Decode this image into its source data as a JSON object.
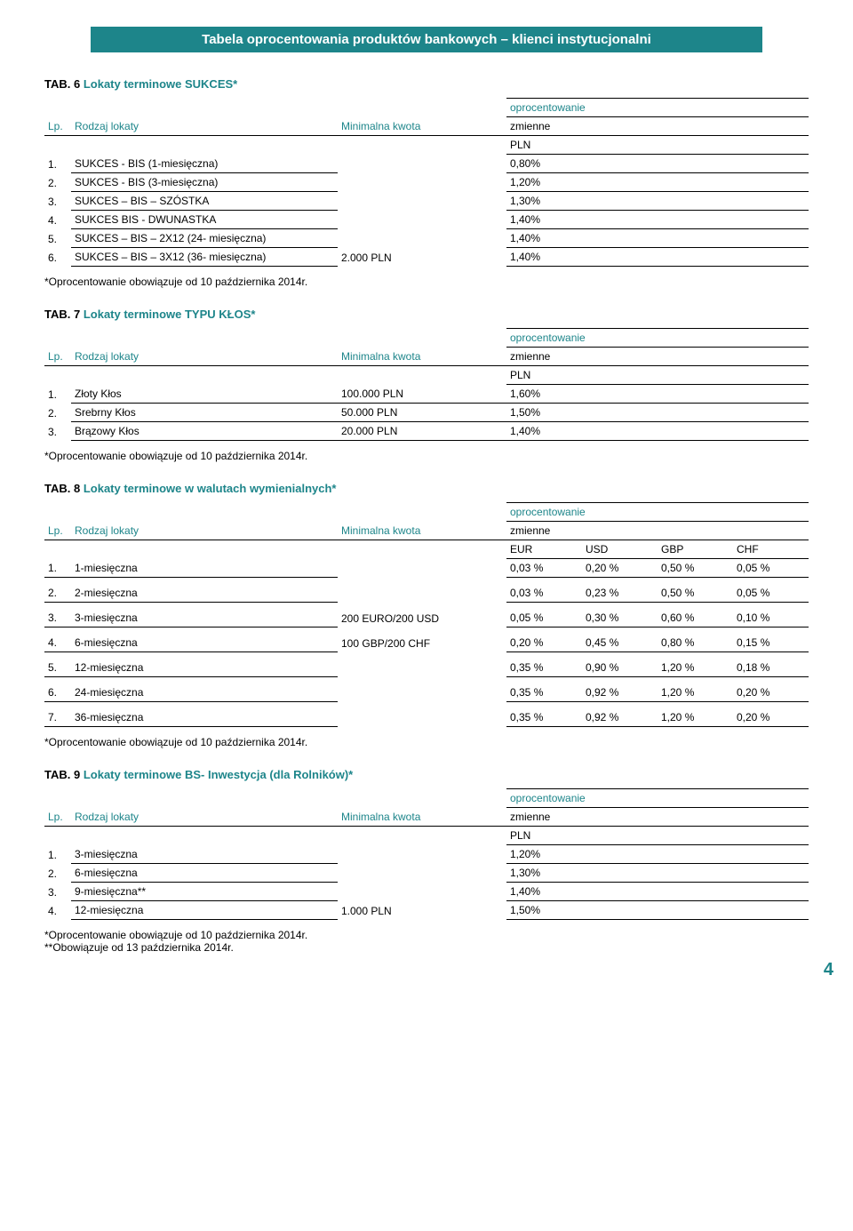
{
  "banner": "Tabela oprocentowania produktów bankowych – klienci instytucjonalni",
  "colors": {
    "brand": "#1d858a",
    "text": "#000000",
    "bg": "#ffffff"
  },
  "labels": {
    "lp": "Lp.",
    "rodzaj": "Rodzaj lokaty",
    "min_kwota": "Minimalna kwota",
    "oproc": "oprocentowanie",
    "zmienne": "zmienne",
    "pln": "PLN",
    "eur": "EUR",
    "usd": "USD",
    "gbp": "GBP",
    "chf": "CHF"
  },
  "note_main": "*Oprocentowanie obowiązuje od 10 października 2014r.",
  "note_extra": "**Obowiązuje od 13 października 2014r.",
  "tab6": {
    "prefix": "TAB. 6",
    "title": "Lokaty terminowe SUKCES*",
    "min": "2.000 PLN",
    "rows": [
      {
        "n": "1.",
        "name": "SUKCES - BIS (1-miesięczna)",
        "rate": "0,80%"
      },
      {
        "n": "2.",
        "name": "SUKCES - BIS (3-miesięczna)",
        "rate": "1,20%"
      },
      {
        "n": "3.",
        "name": "SUKCES – BIS – SZÓSTKA",
        "rate": "1,30%"
      },
      {
        "n": "4.",
        "name": "SUKCES BIS - DWUNASTKA",
        "rate": "1,40%"
      },
      {
        "n": "5.",
        "name": "SUKCES – BIS – 2X12 (24- miesięczna)",
        "rate": "1,40%"
      },
      {
        "n": "6.",
        "name": "SUKCES – BIS – 3X12 (36- miesięczna)",
        "rate": "1,40%"
      }
    ]
  },
  "tab7": {
    "prefix": "TAB. 7",
    "title": "Lokaty terminowe TYPU KŁOS*",
    "rows": [
      {
        "n": "1.",
        "name": "Złoty Kłos",
        "min": "100.000 PLN",
        "rate": "1,60%"
      },
      {
        "n": "2.",
        "name": "Srebrny Kłos",
        "min": "50.000 PLN",
        "rate": "1,50%"
      },
      {
        "n": "3.",
        "name": "Brązowy Kłos",
        "min": "20.000 PLN",
        "rate": "1,40%"
      }
    ]
  },
  "tab8": {
    "prefix": "TAB. 8",
    "title": "Lokaty terminowe w walutach wymienialnych*",
    "min1": "200 EURO/200 USD",
    "min2": "100 GBP/200 CHF",
    "rows": [
      {
        "n": "1.",
        "name": "1-miesięczna",
        "eur": "0,03 %",
        "usd": "0,20 %",
        "gbp": "0,50 %",
        "chf": "0,05 %"
      },
      {
        "n": "2.",
        "name": "2-miesięczna",
        "eur": "0,03 %",
        "usd": "0,23 %",
        "gbp": "0,50 %",
        "chf": "0,05 %"
      },
      {
        "n": "3.",
        "name": "3-miesięczna",
        "eur": "0,05 %",
        "usd": "0,30 %",
        "gbp": "0,60 %",
        "chf": "0,10 %"
      },
      {
        "n": "4.",
        "name": "6-miesięczna",
        "eur": "0,20 %",
        "usd": "0,45 %",
        "gbp": "0,80 %",
        "chf": "0,15 %"
      },
      {
        "n": "5.",
        "name": "12-miesięczna",
        "eur": "0,35 %",
        "usd": "0,90 %",
        "gbp": "1,20 %",
        "chf": "0,18 %"
      },
      {
        "n": "6.",
        "name": "24-miesięczna",
        "eur": "0,35 %",
        "usd": "0,92 %",
        "gbp": "1,20 %",
        "chf": "0,20 %"
      },
      {
        "n": "7.",
        "name": "36-miesięczna",
        "eur": "0,35 %",
        "usd": "0,92 %",
        "gbp": "1,20 %",
        "chf": "0,20 %"
      }
    ]
  },
  "tab9": {
    "prefix": "TAB. 9",
    "title": "Lokaty terminowe BS- Inwestycja (dla Rolników)*",
    "min": "1.000 PLN",
    "rows": [
      {
        "n": "1.",
        "name": "3-miesięczna",
        "rate": "1,20%"
      },
      {
        "n": "2.",
        "name": "6-miesięczna",
        "rate": "1,30%"
      },
      {
        "n": "3.",
        "name": "9-miesięczna**",
        "rate": "1,40%"
      },
      {
        "n": "4.",
        "name": "12-miesięczna",
        "rate": "1,50%"
      }
    ]
  },
  "page_number": "4"
}
